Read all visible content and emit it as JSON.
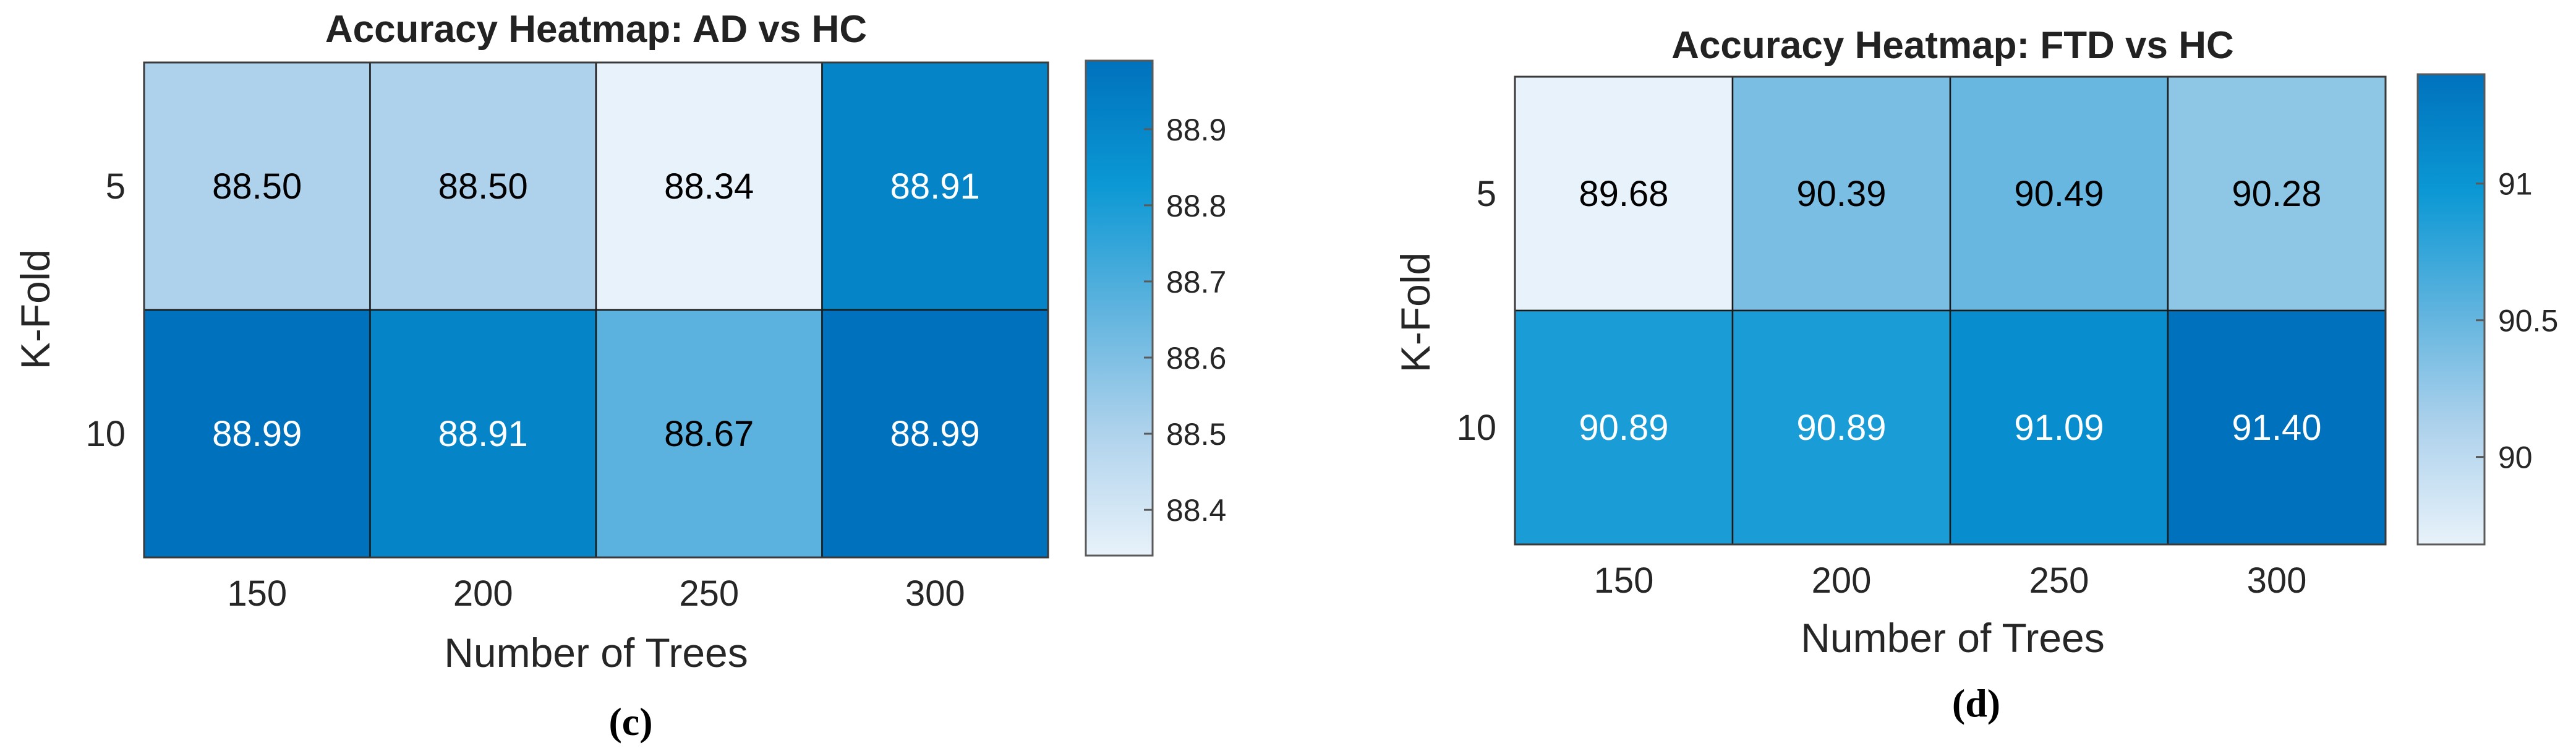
{
  "chart_data": [
    {
      "type": "heatmap",
      "title": "Accuracy Heatmap: AD vs HC",
      "xlabel": "Number of Trees",
      "ylabel": "K-Fold",
      "x_categories": [
        "150",
        "200",
        "250",
        "300"
      ],
      "y_categories": [
        "5",
        "10"
      ],
      "values": [
        [
          88.5,
          88.5,
          88.34,
          88.91
        ],
        [
          88.99,
          88.91,
          88.67,
          88.99
        ]
      ],
      "cell_labels": [
        [
          "88.50",
          "88.50",
          "88.34",
          "88.91"
        ],
        [
          "88.99",
          "88.91",
          "88.67",
          "88.99"
        ]
      ],
      "colorbar": {
        "range": [
          88.34,
          88.99
        ],
        "ticks": [
          "88.4",
          "88.5",
          "88.6",
          "88.7",
          "88.8",
          "88.9"
        ],
        "tick_values": [
          88.4,
          88.5,
          88.6,
          88.7,
          88.8,
          88.9
        ]
      },
      "colormap": [
        "#e8f2fa",
        "#aed2ec",
        "#5eb3de",
        "#0b98d4",
        "#0072bd"
      ],
      "panel_label": "(c)"
    },
    {
      "type": "heatmap",
      "title": "Accuracy Heatmap: FTD vs HC",
      "xlabel": "Number of Trees",
      "ylabel": "K-Fold",
      "x_categories": [
        "150",
        "200",
        "250",
        "300"
      ],
      "y_categories": [
        "5",
        "10"
      ],
      "values": [
        [
          89.68,
          90.39,
          90.49,
          90.28
        ],
        [
          90.89,
          90.89,
          91.09,
          91.4
        ]
      ],
      "cell_labels": [
        [
          "89.68",
          "90.39",
          "90.49",
          "90.28"
        ],
        [
          "90.89",
          "90.89",
          "91.09",
          "91.40"
        ]
      ],
      "colorbar": {
        "range": [
          89.68,
          91.4
        ],
        "ticks": [
          "90",
          "90.5",
          "91"
        ],
        "tick_values": [
          90,
          90.5,
          91
        ]
      },
      "colormap": [
        "#e8f2fa",
        "#aed2ec",
        "#5eb3de",
        "#0b98d4",
        "#0072bd"
      ],
      "panel_label": "(d)"
    }
  ]
}
